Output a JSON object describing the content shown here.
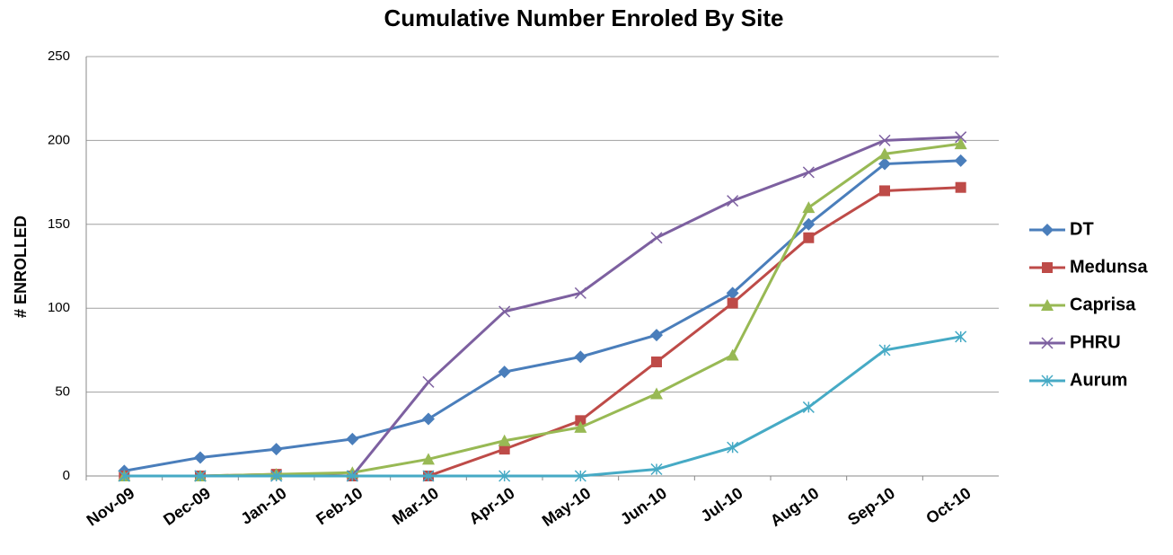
{
  "chart_data": {
    "type": "line",
    "title": "Cumulative Number Enroled By Site",
    "y_label": "# ENROLLED",
    "categories": [
      "Nov-09",
      "Dec-09",
      "Jan-10",
      "Feb-10",
      "Mar-10",
      "Apr-10",
      "May-10",
      "Jun-10",
      "Jul-10",
      "Aug-10",
      "Sep-10",
      "Oct-10"
    ],
    "series": [
      {
        "name": "DT",
        "color": "#4a7ebb",
        "marker": "diamond",
        "values": [
          3,
          11,
          16,
          22,
          34,
          62,
          71,
          84,
          109,
          150,
          186,
          188
        ]
      },
      {
        "name": "Medunsa",
        "color": "#be4b48",
        "marker": "square",
        "values": [
          0,
          0,
          1,
          0,
          0,
          16,
          33,
          68,
          103,
          142,
          170,
          172
        ]
      },
      {
        "name": "Caprisa",
        "color": "#98b954",
        "marker": "triangle",
        "values": [
          0,
          0,
          1,
          2,
          10,
          21,
          29,
          49,
          72,
          160,
          192,
          198
        ]
      },
      {
        "name": "PHRU",
        "color": "#7d60a0",
        "marker": "x",
        "values": [
          0,
          0,
          0,
          0,
          56,
          98,
          109,
          142,
          164,
          181,
          200,
          202
        ]
      },
      {
        "name": "Aurum",
        "color": "#46aac5",
        "marker": "star",
        "values": [
          0,
          0,
          0,
          0,
          0,
          0,
          0,
          4,
          17,
          41,
          75,
          83
        ]
      }
    ],
    "ylim": [
      0,
      250
    ],
    "yticks": [
      0,
      50,
      100,
      150,
      200,
      250
    ],
    "grid": true,
    "legend": "right"
  }
}
